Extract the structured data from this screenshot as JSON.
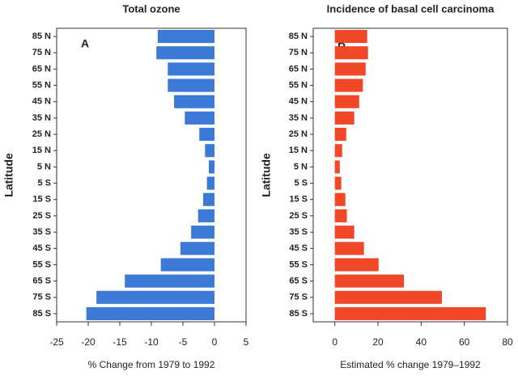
{
  "chart_data": [
    {
      "type": "hbar",
      "title": "Total ozone",
      "annotation": "A",
      "ylabel": "Latitude",
      "xlabel": "% Change from 1979 to 1992",
      "categories": [
        "85 N",
        "75 N",
        "65 N",
        "55 N",
        "45 N",
        "35 N",
        "25 N",
        "15 N",
        "5 N",
        "5 S",
        "15 S",
        "25 S",
        "35 S",
        "45 S",
        "55 S",
        "65 S",
        "75 S",
        "85 S"
      ],
      "values": [
        -9.0,
        -9.2,
        -7.4,
        -7.4,
        -6.4,
        -4.7,
        -2.4,
        -1.5,
        -0.9,
        -1.2,
        -1.8,
        -2.6,
        -3.7,
        -5.4,
        -8.5,
        -14.2,
        -18.7,
        -20.3
      ],
      "color": "#3b7ad6",
      "xlim": [
        -25,
        5
      ],
      "xticks": [
        -25,
        -20,
        -15,
        -10,
        -5,
        0,
        5
      ]
    },
    {
      "type": "hbar",
      "title": "Incidence of basal cell carcinoma",
      "annotation": "B",
      "ylabel": "Latitude",
      "xlabel": "Estimated % change 1979–1992",
      "categories": [
        "85 N",
        "75 N",
        "65 N",
        "55 N",
        "45 N",
        "35 N",
        "25 N",
        "15 N",
        "5 N",
        "5 S",
        "15 S",
        "25 S",
        "35 S",
        "45 S",
        "55 S",
        "65 S",
        "75 S",
        "85 S"
      ],
      "values": [
        15,
        15.4,
        14.3,
        13,
        11.3,
        9,
        5.3,
        3.4,
        2.3,
        3,
        4.9,
        5.6,
        9,
        13.5,
        20.3,
        32,
        49.6,
        70
      ],
      "color": "#f2482a",
      "xlim": [
        -10,
        80
      ],
      "xticks": [
        0,
        20,
        40,
        60,
        80
      ]
    }
  ]
}
